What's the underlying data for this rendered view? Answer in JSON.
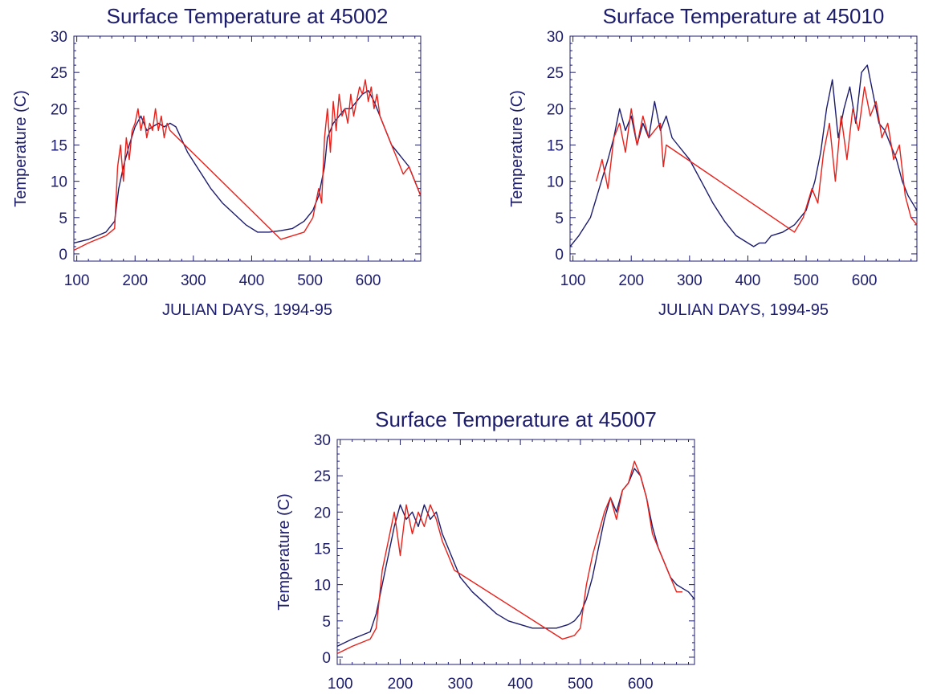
{
  "colors": {
    "axis": "#1c1c6e",
    "series_a": "#1c1c6e",
    "series_b": "#e8201a"
  },
  "chart_data": [
    {
      "type": "line",
      "title": "Surface Temperature at 45002",
      "xlabel": "JULIAN DAYS, 1994-95",
      "ylabel": "Temperature (C)",
      "xlim": [
        95,
        690
      ],
      "ylim": [
        -1,
        30
      ],
      "xticks": [
        "100",
        "200",
        "300",
        "400",
        "500",
        "600"
      ],
      "yticks": [
        "0",
        "5",
        "10",
        "15",
        "20",
        "25",
        "30"
      ],
      "grid": false,
      "series": [
        {
          "color": "#1c1c6e",
          "x": [
            95,
            120,
            150,
            165,
            172,
            180,
            190,
            200,
            210,
            220,
            230,
            240,
            250,
            260,
            270,
            290,
            310,
            330,
            350,
            370,
            390,
            410,
            430,
            450,
            470,
            490,
            505,
            515,
            525,
            530,
            540,
            550,
            560,
            570,
            580,
            590,
            600,
            610,
            620,
            630,
            640,
            650,
            660,
            670,
            680,
            690
          ],
          "values": [
            1.5,
            2.0,
            3.0,
            4.5,
            9,
            12,
            15,
            17.5,
            19.0,
            17,
            17.5,
            18,
            17.5,
            18,
            17.5,
            14,
            11.5,
            9,
            7,
            5.5,
            4,
            3,
            3,
            3.2,
            3.5,
            4.5,
            6,
            8,
            12,
            16,
            18,
            19,
            20,
            20,
            21,
            22,
            22.5,
            21,
            19,
            17,
            15,
            14,
            13,
            12,
            10,
            8
          ]
        },
        {
          "color": "#e8201a",
          "x": [
            95,
            120,
            150,
            165,
            170,
            175,
            180,
            185,
            190,
            195,
            200,
            205,
            210,
            215,
            220,
            225,
            230,
            235,
            240,
            245,
            250,
            255,
            260,
            450,
            470,
            490,
            505,
            515,
            520,
            525,
            530,
            535,
            540,
            545,
            550,
            555,
            560,
            565,
            570,
            575,
            580,
            585,
            590,
            595,
            600,
            605,
            610,
            615,
            620,
            630,
            640,
            650,
            660,
            670,
            680,
            690
          ],
          "values": [
            0.5,
            1.5,
            2.5,
            3.5,
            12,
            15,
            10,
            16,
            13,
            17,
            18,
            20,
            17,
            19,
            16,
            18,
            17,
            20,
            17,
            19,
            16,
            18,
            17,
            2,
            2.5,
            3,
            5,
            9,
            7,
            16,
            20,
            14,
            21,
            17,
            22,
            19,
            20,
            18,
            22,
            19,
            21,
            23,
            22,
            24,
            21,
            23,
            20,
            22,
            19,
            17,
            15,
            13,
            11,
            12,
            10,
            8
          ]
        }
      ]
    },
    {
      "type": "line",
      "title": "Surface Temperature at 45010",
      "xlabel": "JULIAN DAYS, 1994-95",
      "ylabel": "Temperature (C)",
      "xlim": [
        95,
        690
      ],
      "ylim": [
        -1,
        30
      ],
      "xticks": [
        "100",
        "200",
        "300",
        "400",
        "500",
        "600"
      ],
      "yticks": [
        "0",
        "5",
        "10",
        "15",
        "20",
        "25",
        "30"
      ],
      "grid": false,
      "series": [
        {
          "color": "#1c1c6e",
          "x": [
            95,
            110,
            130,
            145,
            160,
            170,
            180,
            190,
            200,
            210,
            220,
            230,
            240,
            250,
            260,
            270,
            280,
            300,
            320,
            340,
            360,
            380,
            400,
            410,
            420,
            430,
            440,
            460,
            480,
            500,
            515,
            525,
            535,
            545,
            555,
            565,
            575,
            585,
            595,
            605,
            615,
            625,
            635,
            645,
            655,
            665,
            675,
            690
          ],
          "values": [
            1,
            2.5,
            5,
            9,
            13,
            16,
            20,
            17,
            19,
            15,
            18,
            16,
            21,
            17,
            19,
            16,
            15,
            13,
            10,
            7,
            4.5,
            2.5,
            1.5,
            1,
            1.5,
            1.5,
            2.5,
            3,
            4,
            6,
            10,
            14,
            20,
            24,
            16,
            20,
            23,
            18,
            25,
            26,
            22,
            18,
            17,
            15,
            13,
            10,
            8,
            6
          ]
        },
        {
          "color": "#e8201a",
          "x": [
            140,
            150,
            160,
            170,
            180,
            190,
            200,
            210,
            220,
            230,
            240,
            250,
            255,
            260,
            480,
            495,
            510,
            520,
            530,
            540,
            550,
            560,
            570,
            580,
            590,
            600,
            610,
            620,
            630,
            640,
            650,
            660,
            670,
            680,
            690
          ],
          "values": [
            10,
            13,
            9,
            16,
            18,
            14,
            20,
            15,
            19,
            16,
            17,
            18,
            12,
            15,
            3,
            5,
            9,
            7,
            14,
            18,
            10,
            19,
            13,
            20,
            17,
            23,
            19,
            21,
            16,
            18,
            13,
            15,
            8,
            5,
            4
          ]
        }
      ]
    },
    {
      "type": "line",
      "title": "Surface Temperature at 45007",
      "xlabel": "",
      "ylabel": "Temperature (C)",
      "xlim": [
        95,
        690
      ],
      "ylim": [
        -1,
        30
      ],
      "xticks": [
        "100",
        "200",
        "300",
        "400",
        "500",
        "600"
      ],
      "yticks": [
        "0",
        "5",
        "10",
        "15",
        "20",
        "25",
        "30"
      ],
      "grid": false,
      "series": [
        {
          "color": "#1c1c6e",
          "x": [
            95,
            120,
            150,
            160,
            170,
            180,
            190,
            200,
            210,
            220,
            230,
            240,
            250,
            260,
            270,
            280,
            290,
            300,
            320,
            340,
            360,
            380,
            400,
            420,
            440,
            460,
            480,
            490,
            500,
            510,
            520,
            530,
            540,
            550,
            560,
            570,
            580,
            590,
            600,
            610,
            620,
            630,
            640,
            650,
            660,
            670,
            680,
            690
          ],
          "values": [
            1.5,
            2.5,
            3.5,
            6,
            10,
            14,
            18,
            21,
            19,
            20,
            18,
            21,
            19,
            20,
            17,
            15,
            13,
            11,
            9,
            7.5,
            6,
            5,
            4.5,
            4,
            4,
            4,
            4.5,
            5,
            6,
            8,
            11,
            15,
            19,
            22,
            20,
            23,
            24,
            26,
            25,
            22,
            18,
            15,
            13,
            11,
            10,
            9.5,
            9,
            8
          ]
        },
        {
          "color": "#e8201a",
          "x": [
            95,
            120,
            150,
            160,
            170,
            180,
            190,
            200,
            210,
            220,
            230,
            240,
            250,
            260,
            270,
            280,
            290,
            470,
            490,
            500,
            510,
            520,
            530,
            540,
            550,
            560,
            570,
            580,
            590,
            600,
            610,
            620,
            630,
            640,
            650,
            660,
            670
          ],
          "values": [
            0.5,
            1.5,
            2.5,
            4,
            12,
            16,
            20,
            14,
            21,
            17,
            20,
            18,
            21,
            19,
            16,
            14,
            12,
            2.5,
            3,
            4,
            10,
            14,
            17,
            20,
            22,
            19,
            23,
            24,
            27,
            25,
            22,
            17,
            15,
            13,
            11,
            9,
            9
          ]
        }
      ]
    }
  ]
}
